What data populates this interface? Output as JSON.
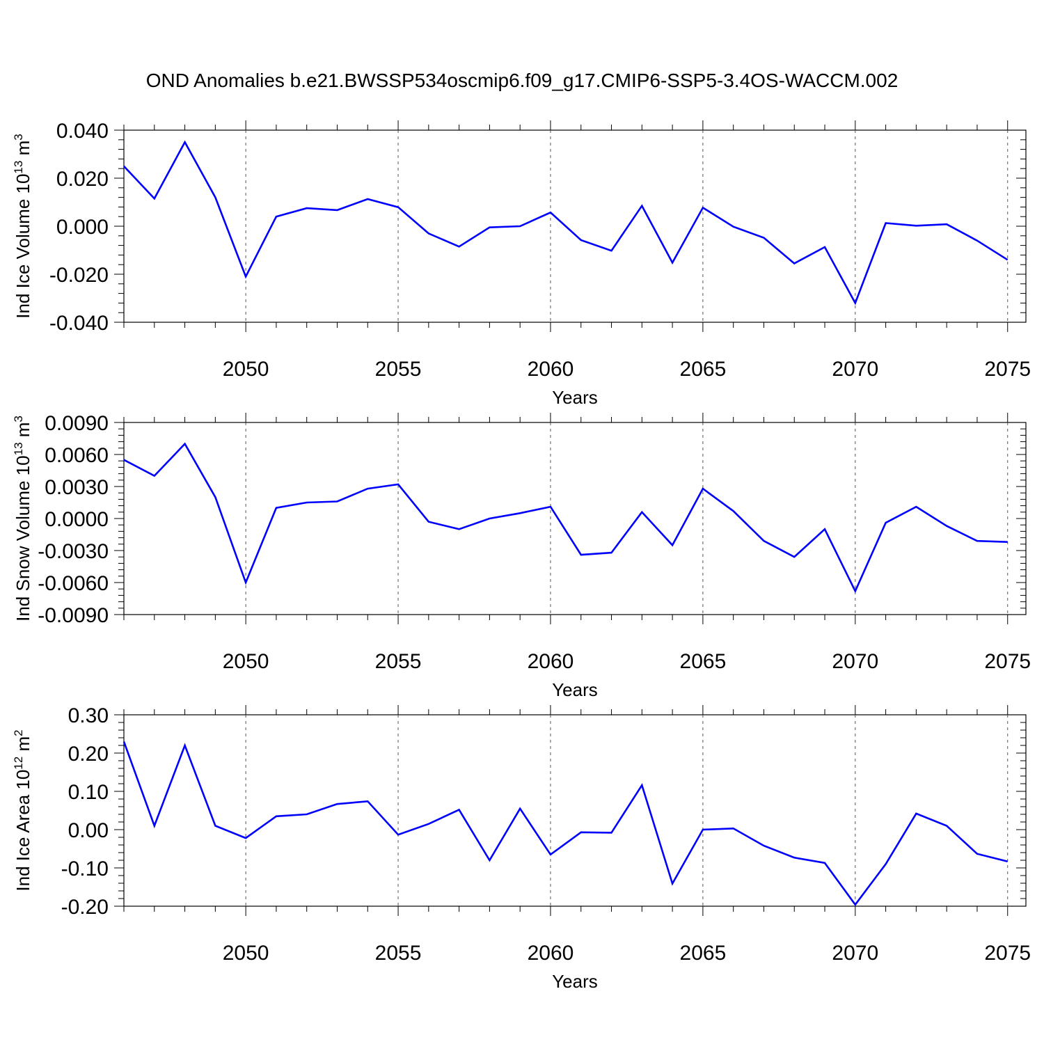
{
  "title": "OND Anomalies b.e21.BWSSP534oscmip6.f09_g17.CMIP6-SSP5-3.4OS-WACCM.002",
  "chart_data": [
    {
      "type": "line",
      "ylabel": "Ind Ice Volume 10",
      "ylabel_exp": "13",
      "ylabel_unit": " m",
      "ylabel_unit_exp": "3",
      "xlabel": "Years",
      "xlim": [
        2046,
        2075.6
      ],
      "ylim": [
        -0.04,
        0.04
      ],
      "yticks": [
        -0.04,
        -0.02,
        0.0,
        0.02,
        0.04
      ],
      "ytick_labels": [
        "-0.040",
        "-0.020",
        "0.000",
        "0.020",
        "0.040"
      ],
      "xticks": [
        2050,
        2055,
        2060,
        2065,
        2070,
        2075
      ],
      "xtick_labels": [
        "2050",
        "2055",
        "2060",
        "2065",
        "2070",
        "2075"
      ],
      "grid": "vertical dashed at major x ticks",
      "series_color": "#0000ff",
      "x": [
        2046,
        2047,
        2048,
        2049,
        2050,
        2051,
        2052,
        2053,
        2054,
        2055,
        2056,
        2057,
        2058,
        2059,
        2060,
        2061,
        2062,
        2063,
        2064,
        2065,
        2066,
        2067,
        2068,
        2069,
        2070,
        2071,
        2072,
        2073,
        2074,
        2075
      ],
      "values": [
        0.025,
        0.0115,
        0.035,
        0.012,
        -0.021,
        0.004,
        0.0075,
        0.0067,
        0.0113,
        0.0079,
        -0.003,
        -0.0085,
        -0.0005,
        0.0,
        0.0057,
        -0.0058,
        -0.0102,
        0.0085,
        -0.0152,
        0.0077,
        -0.0002,
        -0.0048,
        -0.0155,
        -0.0087,
        -0.032,
        0.0013,
        0.0002,
        0.0008,
        -0.006,
        -0.014
      ]
    },
    {
      "type": "line",
      "ylabel": "Ind Snow Volume 10",
      "ylabel_exp": "13",
      "ylabel_unit": " m",
      "ylabel_unit_exp": "3",
      "xlabel": "Years",
      "xlim": [
        2046,
        2075.6
      ],
      "ylim": [
        -0.009,
        0.009
      ],
      "yticks": [
        -0.009,
        -0.006,
        -0.003,
        0.0,
        0.003,
        0.006,
        0.009
      ],
      "ytick_labels": [
        "-0.0090",
        "-0.0060",
        "-0.0030",
        "0.0000",
        "0.0030",
        "0.0060",
        "0.0090"
      ],
      "xticks": [
        2050,
        2055,
        2060,
        2065,
        2070,
        2075
      ],
      "xtick_labels": [
        "2050",
        "2055",
        "2060",
        "2065",
        "2070",
        "2075"
      ],
      "grid": "vertical dashed at major x ticks",
      "series_color": "#0000ff",
      "x": [
        2046,
        2047,
        2048,
        2049,
        2050,
        2051,
        2052,
        2053,
        2054,
        2055,
        2056,
        2057,
        2058,
        2059,
        2060,
        2061,
        2062,
        2063,
        2064,
        2065,
        2066,
        2067,
        2068,
        2069,
        2070,
        2071,
        2072,
        2073,
        2074,
        2075
      ],
      "values": [
        0.0055,
        0.004,
        0.007,
        0.002,
        -0.006,
        0.001,
        0.0015,
        0.0016,
        0.0028,
        0.0032,
        -0.0003,
        -0.001,
        0.0,
        0.0005,
        0.0011,
        -0.0034,
        -0.0032,
        0.0006,
        -0.0025,
        0.0028,
        0.0007,
        -0.0021,
        -0.0036,
        -0.001,
        -0.0068,
        -0.0004,
        0.0011,
        -0.0007,
        -0.0021,
        -0.0022
      ]
    },
    {
      "type": "line",
      "ylabel": "Ind Ice Area 10",
      "ylabel_exp": "12",
      "ylabel_unit": " m",
      "ylabel_unit_exp": "2",
      "xlabel": "Years",
      "xlim": [
        2046,
        2075.6
      ],
      "ylim": [
        -0.2,
        0.3
      ],
      "yticks": [
        -0.2,
        -0.1,
        0.0,
        0.1,
        0.2,
        0.3
      ],
      "ytick_labels": [
        "-0.20",
        "-0.10",
        "0.00",
        "0.10",
        "0.20",
        "0.30"
      ],
      "xticks": [
        2050,
        2055,
        2060,
        2065,
        2070,
        2075
      ],
      "xtick_labels": [
        "2050",
        "2055",
        "2060",
        "2065",
        "2070",
        "2075"
      ],
      "grid": "vertical dashed at major x ticks",
      "series_color": "#0000ff",
      "x": [
        2046,
        2047,
        2048,
        2049,
        2050,
        2051,
        2052,
        2053,
        2054,
        2055,
        2056,
        2057,
        2058,
        2059,
        2060,
        2061,
        2062,
        2063,
        2064,
        2065,
        2066,
        2067,
        2068,
        2069,
        2070,
        2071,
        2072,
        2073,
        2074,
        2075
      ],
      "values": [
        0.23,
        0.01,
        0.22,
        0.01,
        -0.022,
        0.035,
        0.04,
        0.067,
        0.074,
        -0.013,
        0.015,
        0.052,
        -0.08,
        0.055,
        -0.065,
        -0.007,
        -0.008,
        0.116,
        -0.141,
        0.0,
        0.003,
        -0.042,
        -0.073,
        -0.087,
        -0.196,
        -0.09,
        0.042,
        0.01,
        -0.063,
        -0.083
      ]
    }
  ]
}
